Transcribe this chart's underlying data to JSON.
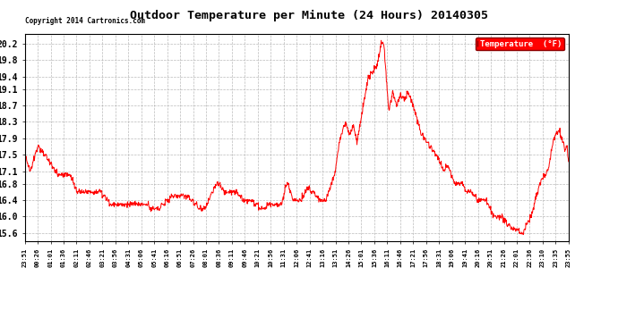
{
  "title": "Outdoor Temperature per Minute (24 Hours) 20140305",
  "copyright": "Copyright 2014 Cartronics.com",
  "legend_label": "Temperature  (°F)",
  "yticks": [
    15.6,
    16.0,
    16.4,
    16.8,
    17.1,
    17.5,
    17.9,
    18.3,
    18.7,
    19.1,
    19.4,
    19.8,
    20.2
  ],
  "ylim": [
    15.4,
    20.45
  ],
  "line_color": "red",
  "background_color": "white",
  "grid_color": "#aaaaaa",
  "x_tick_labels": [
    "23:51",
    "00:26",
    "01:01",
    "01:36",
    "02:11",
    "02:46",
    "03:21",
    "03:56",
    "04:31",
    "05:06",
    "05:41",
    "06:16",
    "06:51",
    "07:26",
    "08:01",
    "08:36",
    "09:11",
    "09:46",
    "10:21",
    "10:56",
    "11:31",
    "12:06",
    "12:41",
    "13:16",
    "13:51",
    "14:26",
    "15:01",
    "15:36",
    "16:11",
    "16:46",
    "17:21",
    "17:56",
    "18:31",
    "19:06",
    "19:41",
    "20:16",
    "20:51",
    "21:26",
    "22:01",
    "22:36",
    "23:10",
    "23:35",
    "23:55"
  ]
}
